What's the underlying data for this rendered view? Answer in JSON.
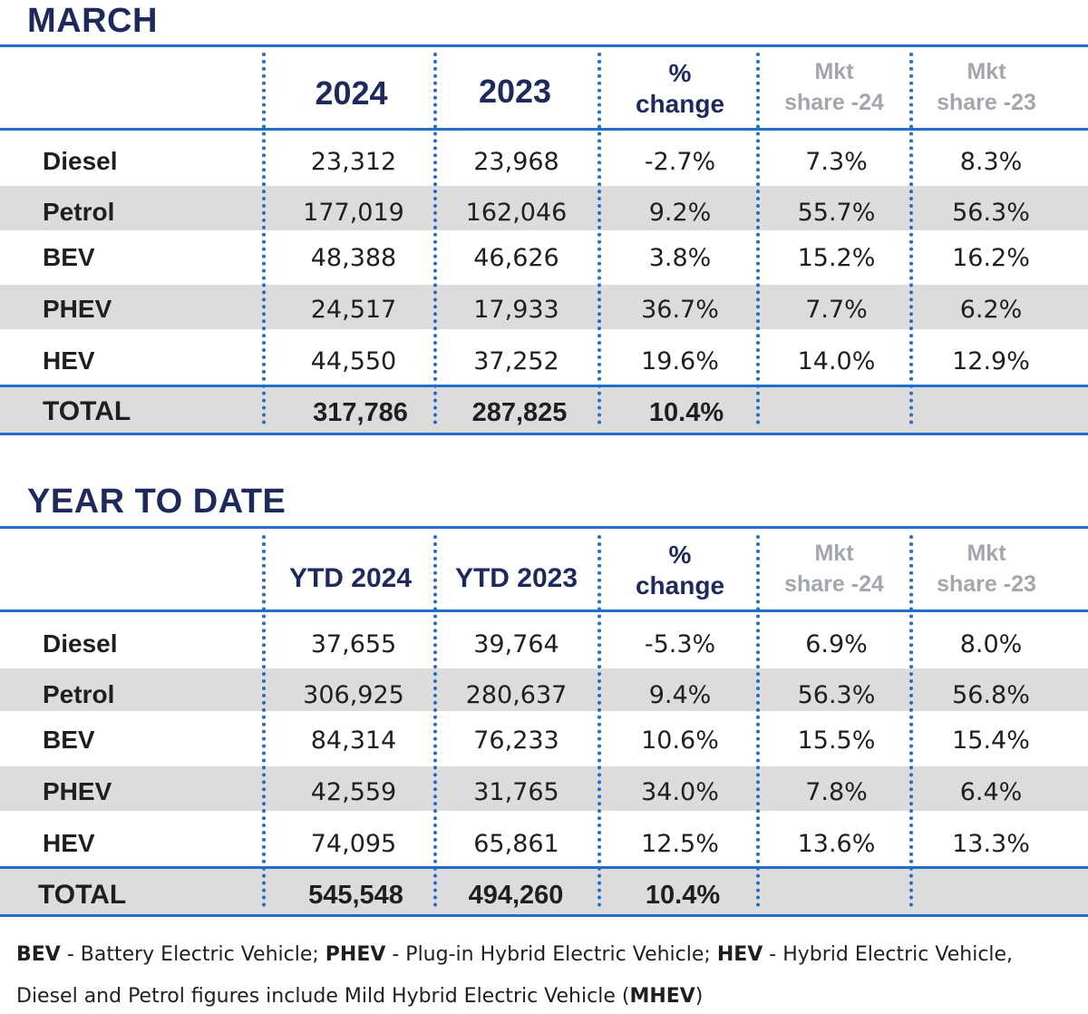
{
  "march": {
    "title": "MARCH",
    "headers": {
      "col1": "2024",
      "col2": "2023",
      "pct_line1": "%",
      "pct_line2": "change",
      "mkt24_line1": "Mkt",
      "mkt24_line2": "share -24",
      "mkt23_line1": "Mkt",
      "mkt23_line2": "share -23"
    },
    "rows": [
      {
        "label": "Diesel",
        "v2024": "23,312",
        "v2023": "23,968",
        "pct": "-2.7%",
        "mkt24": "7.3%",
        "mkt23": "8.3%"
      },
      {
        "label": "Petrol",
        "v2024": "177,019",
        "v2023": "162,046",
        "pct": "9.2%",
        "mkt24": "55.7%",
        "mkt23": "56.3%"
      },
      {
        "label": "BEV",
        "v2024": "48,388",
        "v2023": "46,626",
        "pct": "3.8%",
        "mkt24": "15.2%",
        "mkt23": "16.2%"
      },
      {
        "label": "PHEV",
        "v2024": "24,517",
        "v2023": "17,933",
        "pct": "36.7%",
        "mkt24": "7.7%",
        "mkt23": "6.2%"
      },
      {
        "label": "HEV",
        "v2024": "44,550",
        "v2023": "37,252",
        "pct": "19.6%",
        "mkt24": "14.0%",
        "mkt23": "12.9%"
      }
    ],
    "total": {
      "label": "TOTAL",
      "v2024": "317,786",
      "v2023": "287,825",
      "pct": "10.4%"
    }
  },
  "ytd": {
    "title": "YEAR TO DATE",
    "headers": {
      "col1": "YTD 2024",
      "col2": "YTD 2023",
      "pct_line1": "%",
      "pct_line2": "change",
      "mkt24_line1": "Mkt",
      "mkt24_line2": "share -24",
      "mkt23_line1": "Mkt",
      "mkt23_line2": "share -23"
    },
    "rows": [
      {
        "label": "Diesel",
        "v2024": "37,655",
        "v2023": "39,764",
        "pct": "-5.3%",
        "mkt24": "6.9%",
        "mkt23": "8.0%"
      },
      {
        "label": "Petrol",
        "v2024": "306,925",
        "v2023": "280,637",
        "pct": "9.4%",
        "mkt24": "56.3%",
        "mkt23": "56.8%"
      },
      {
        "label": "BEV",
        "v2024": "84,314",
        "v2023": "76,233",
        "pct": "10.6%",
        "mkt24": "15.5%",
        "mkt23": "15.4%"
      },
      {
        "label": "PHEV",
        "v2024": "42,559",
        "v2023": "31,765",
        "pct": "34.0%",
        "mkt24": "7.8%",
        "mkt23": "6.4%"
      },
      {
        "label": "HEV",
        "v2024": "74,095",
        "v2023": "65,861",
        "pct": "12.5%",
        "mkt24": "13.6%",
        "mkt23": "13.3%"
      }
    ],
    "total": {
      "label": "TOTAL",
      "v2024": "545,548",
      "v2023": "494,260",
      "pct": "10.4%"
    }
  },
  "footnote": {
    "bev_abbr": "BEV",
    "bev_text": " - Battery Electric Vehicle; ",
    "phev_abbr": "PHEV",
    "phev_text": " - Plug-in Hybrid Electric Vehicle; ",
    "hev_abbr": "HEV",
    "hev_text": " - Hybrid Electric Vehicle,",
    "line2_text": "Diesel and Petrol figures include Mild Hybrid Electric Vehicle (",
    "mhev_abbr": "MHEV",
    "line2_end": ")"
  }
}
